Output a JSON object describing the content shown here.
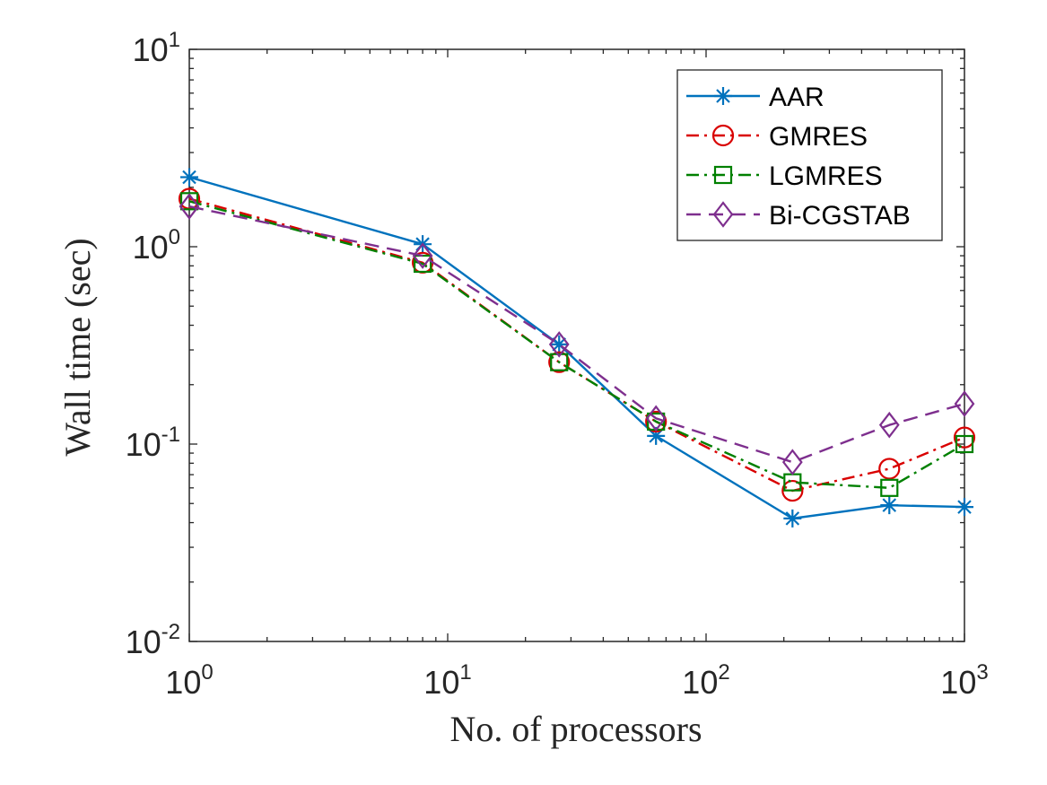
{
  "chart_data": {
    "type": "line",
    "xscale": "log",
    "yscale": "log",
    "xlim": [
      1,
      1000
    ],
    "ylim": [
      0.01,
      10
    ],
    "xlabel": "No. of processors",
    "ylabel": "Wall time (sec)",
    "grid": false,
    "legend_position": "top-right",
    "x_ticks": [
      {
        "value": 1,
        "base": "10",
        "exp": "0"
      },
      {
        "value": 10,
        "base": "10",
        "exp": "1"
      },
      {
        "value": 100,
        "base": "10",
        "exp": "2"
      },
      {
        "value": 1000,
        "base": "10",
        "exp": "3"
      }
    ],
    "y_ticks": [
      {
        "value": 0.01,
        "base": "10",
        "exp": "-2"
      },
      {
        "value": 0.1,
        "base": "10",
        "exp": "-1"
      },
      {
        "value": 1,
        "base": "10",
        "exp": "0"
      },
      {
        "value": 10,
        "base": "10",
        "exp": "1"
      }
    ],
    "x": [
      1,
      8,
      27,
      64,
      216,
      512,
      1000
    ],
    "series": [
      {
        "name": "AAR",
        "color": "#0072BD",
        "line_style": "solid",
        "marker": "asterisk",
        "values": [
          2.25,
          1.03,
          0.32,
          0.11,
          0.042,
          0.049,
          0.048
        ]
      },
      {
        "name": "GMRES",
        "color": "#D90000",
        "line_style": "dashdot",
        "marker": "circle",
        "values": [
          1.75,
          0.83,
          0.26,
          0.13,
          0.058,
          0.075,
          0.108
        ]
      },
      {
        "name": "LGMRES",
        "color": "#008000",
        "line_style": "dashdot",
        "marker": "square",
        "values": [
          1.7,
          0.82,
          0.26,
          0.13,
          0.064,
          0.06,
          0.1
        ]
      },
      {
        "name": "Bi-CGSTAB",
        "color": "#7E2F8E",
        "line_style": "dashed",
        "marker": "diamond",
        "values": [
          1.6,
          0.9,
          0.32,
          0.135,
          0.081,
          0.125,
          0.16
        ]
      }
    ]
  }
}
